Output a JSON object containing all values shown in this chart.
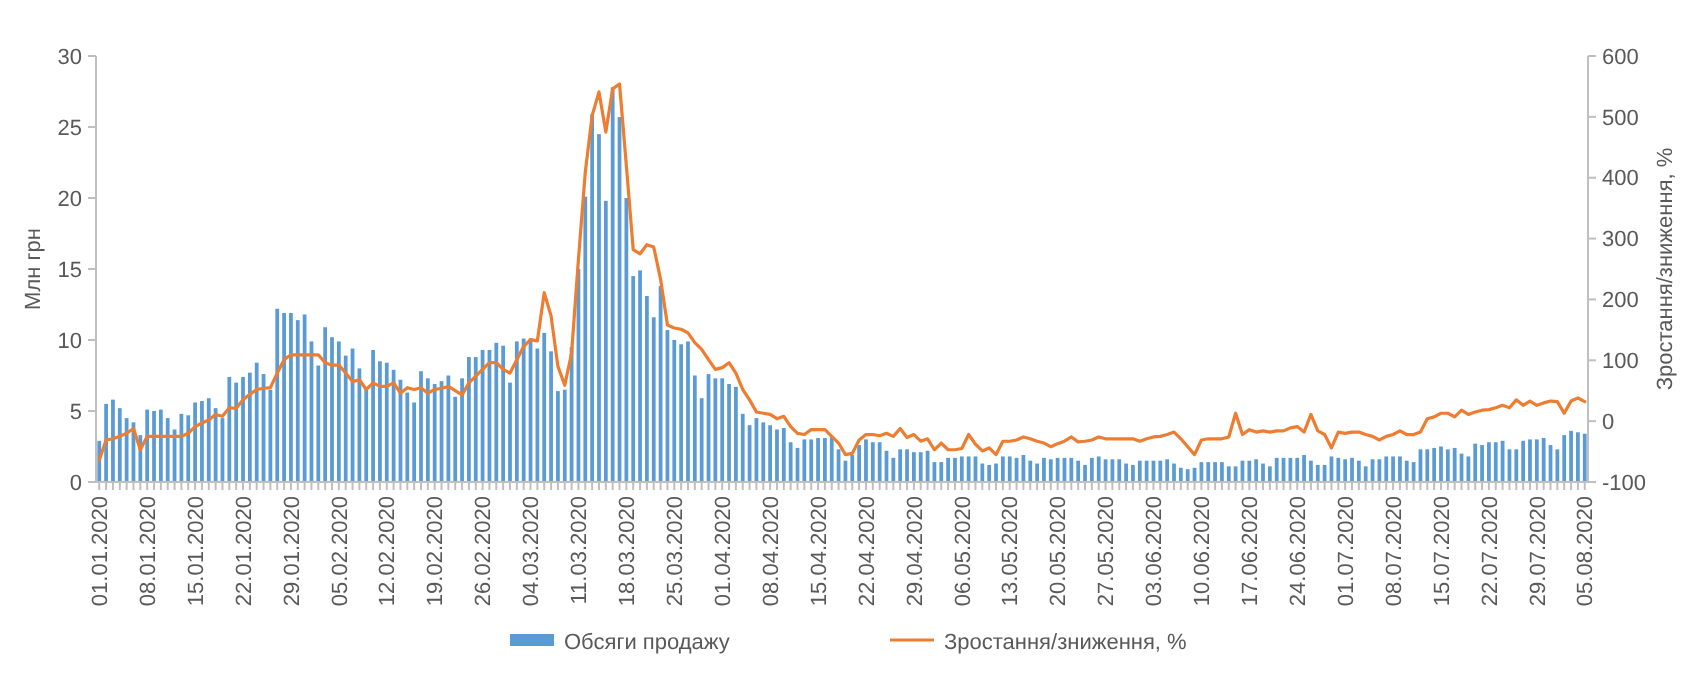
{
  "chart_data": {
    "type": "bar",
    "ylabel": "Млн грн",
    "y2label": "Зростання/зниження, %",
    "categories": [
      "01.01.2020",
      null,
      null,
      null,
      null,
      null,
      null,
      "08.01.2020",
      null,
      null,
      null,
      null,
      null,
      null,
      "15.01.2020",
      null,
      null,
      null,
      null,
      null,
      null,
      "22.01.2020",
      null,
      null,
      null,
      null,
      null,
      null,
      "29.01.2020",
      null,
      null,
      null,
      null,
      null,
      null,
      "05.02.2020",
      null,
      null,
      null,
      null,
      null,
      null,
      "12.02.2020",
      null,
      null,
      null,
      null,
      null,
      null,
      "19.02.2020",
      null,
      null,
      null,
      null,
      null,
      null,
      "26.02.2020",
      null,
      null,
      null,
      null,
      null,
      null,
      "04.03.2020",
      null,
      null,
      null,
      null,
      null,
      null,
      "11.03.2020",
      null,
      null,
      null,
      null,
      null,
      null,
      "18.03.2020",
      null,
      null,
      null,
      null,
      null,
      null,
      "25.03.2020",
      null,
      null,
      null,
      null,
      null,
      null,
      "01.04.2020",
      null,
      null,
      null,
      null,
      null,
      null,
      "08.04.2020",
      null,
      null,
      null,
      null,
      null,
      null,
      "15.04.2020",
      null,
      null,
      null,
      null,
      null,
      null,
      "22.04.2020",
      null,
      null,
      null,
      null,
      null,
      null,
      "29.04.2020",
      null,
      null,
      null,
      null,
      null,
      null,
      "06.05.2020",
      null,
      null,
      null,
      null,
      null,
      null,
      "13.05.2020",
      null,
      null,
      null,
      null,
      null,
      null,
      "20.05.2020",
      null,
      null,
      null,
      null,
      null,
      null,
      "27.05.2020",
      null,
      null,
      null,
      null,
      null,
      null,
      "03.06.2020",
      null,
      null,
      null,
      null,
      null,
      null,
      "10.06.2020",
      null,
      null,
      null,
      null,
      null,
      null,
      "17.06.2020",
      null,
      null,
      null,
      null,
      null,
      null,
      "24.06.2020",
      null,
      null,
      null,
      null,
      null,
      null,
      "01.07.2020",
      null,
      null,
      null,
      null,
      null,
      null,
      "08.07.2020",
      null,
      null,
      null,
      null,
      null,
      null,
      "15.07.2020",
      null,
      null,
      null,
      null,
      null,
      null,
      "22.07.2020",
      null,
      null,
      null,
      null,
      null,
      null,
      "29.07.2020",
      null,
      null,
      null,
      null,
      null,
      null,
      "05.08.2020"
    ],
    "series": [
      {
        "name": "Обсяги продажу",
        "color": "#5b9bd5",
        "values": [
          2.9,
          5.5,
          5.8,
          5.2,
          4.5,
          4.2,
          3.3,
          5.1,
          5.0,
          5.1,
          4.5,
          3.7,
          4.8,
          4.7,
          5.6,
          5.7,
          5.9,
          5.2,
          4.5,
          7.4,
          7.0,
          7.4,
          7.7,
          8.4,
          7.6,
          6.5,
          12.2,
          11.9,
          11.9,
          11.4,
          11.8,
          9.9,
          8.2,
          10.9,
          10.2,
          9.9,
          8.9,
          9.4,
          8.0,
          6.6,
          9.3,
          8.5,
          8.4,
          7.9,
          7.2,
          6.3,
          5.6,
          7.8,
          7.3,
          6.9,
          7.1,
          7.5,
          6.0,
          7.3,
          8.8,
          8.8,
          9.3,
          9.3,
          9.8,
          9.6,
          7.0,
          9.9,
          10.1,
          10.1,
          9.4,
          10.5,
          9.2,
          6.4,
          6.5,
          9.5,
          15.0,
          20.1,
          25.9,
          24.5,
          19.8,
          27.8,
          25.7,
          20.0,
          14.5,
          14.9,
          13.1,
          11.6,
          13.8,
          10.7,
          10.0,
          9.7,
          9.9,
          7.5,
          5.9,
          7.6,
          7.3,
          7.3,
          6.9,
          6.7,
          4.8,
          4.0,
          4.5,
          4.2,
          4.0,
          3.7,
          3.8,
          2.8,
          2.4,
          3.0,
          3.0,
          3.1,
          3.1,
          3.2,
          2.3,
          1.5,
          1.9,
          2.6,
          3.0,
          2.8,
          2.8,
          2.2,
          1.7,
          2.3,
          2.3,
          2.1,
          2.1,
          2.2,
          1.4,
          1.4,
          1.7,
          1.7,
          1.8,
          1.8,
          1.8,
          1.3,
          1.2,
          1.3,
          1.8,
          1.8,
          1.7,
          1.9,
          1.5,
          1.3,
          1.7,
          1.6,
          1.7,
          1.7,
          1.7,
          1.5,
          1.2,
          1.7,
          1.8,
          1.6,
          1.6,
          1.6,
          1.3,
          1.2,
          1.5,
          1.5,
          1.5,
          1.5,
          1.6,
          1.3,
          1.0,
          0.9,
          1.0,
          1.4,
          1.4,
          1.4,
          1.4,
          1.1,
          1.1,
          1.5,
          1.5,
          1.6,
          1.3,
          1.1,
          1.7,
          1.7,
          1.7,
          1.7,
          1.9,
          1.5,
          1.2,
          1.2,
          1.8,
          1.7,
          1.6,
          1.7,
          1.5,
          1.1,
          1.6,
          1.6,
          1.8,
          1.8,
          1.8,
          1.5,
          1.4,
          2.3,
          2.3,
          2.4,
          2.5,
          2.3,
          2.4,
          2.0,
          1.8,
          2.7,
          2.6,
          2.8,
          2.8,
          2.9,
          2.3,
          2.3,
          2.9,
          3.0,
          3.0,
          3.1,
          2.6,
          2.3,
          3.3,
          3.6,
          3.5,
          3.4
        ]
      },
      {
        "name": "Зростання/зниження, %",
        "type": "line",
        "axis": "y2",
        "color": "#ed7d31",
        "values": [
          -64,
          -31,
          -29,
          -25,
          -20,
          -12,
          -47,
          -25,
          -25,
          -25,
          -25,
          -25,
          -25,
          -20,
          -9,
          -3,
          2,
          11,
          8,
          22,
          21,
          35,
          44,
          52,
          54,
          55,
          79,
          101,
          109,
          109,
          109,
          109,
          109,
          96,
          92,
          92,
          79,
          65,
          68,
          52,
          63,
          57,
          57,
          63,
          46,
          55,
          52,
          55,
          46,
          52,
          54,
          57,
          50,
          43,
          63,
          74,
          85,
          96,
          96,
          85,
          79,
          101,
          123,
          134,
          132,
          211,
          173,
          90,
          59,
          112,
          266,
          409,
          502,
          541,
          475,
          546,
          554,
          420,
          282,
          275,
          290,
          286,
          233,
          158,
          153,
          151,
          145,
          129,
          118,
          101,
          85,
          88,
          96,
          79,
          52,
          35,
          15,
          13,
          11,
          4,
          8,
          -9,
          -20,
          -22,
          -14,
          -14,
          -14,
          -25,
          -36,
          -55,
          -53,
          -31,
          -22,
          -22,
          -24,
          -20,
          -25,
          -12,
          -27,
          -22,
          -33,
          -29,
          -47,
          -36,
          -47,
          -47,
          -45,
          -22,
          -38,
          -49,
          -44,
          -55,
          -33,
          -33,
          -31,
          -26,
          -29,
          -33,
          -36,
          -42,
          -37,
          -33,
          -26,
          -34,
          -33,
          -31,
          -26,
          -29,
          -29,
          -29,
          -29,
          -29,
          -33,
          -29,
          -26,
          -25,
          -22,
          -18,
          -29,
          -42,
          -55,
          -31,
          -29,
          -29,
          -29,
          -26,
          13,
          -22,
          -14,
          -18,
          -16,
          -18,
          -16,
          -16,
          -11,
          -9,
          -18,
          11,
          -16,
          -22,
          -44,
          -18,
          -20,
          -18,
          -18,
          -22,
          -25,
          -31,
          -25,
          -22,
          -16,
          -22,
          -22,
          -18,
          4,
          7,
          13,
          13,
          7,
          18,
          11,
          15,
          18,
          19,
          22,
          26,
          22,
          35,
          26,
          33,
          26,
          30,
          33,
          32,
          13,
          33,
          38,
          32
        ]
      }
    ],
    "ylim": [
      0,
      30
    ],
    "yticks": [
      0,
      5,
      10,
      15,
      20,
      25,
      30
    ],
    "y2lim": [
      -100,
      600
    ],
    "y2ticks": [
      -100,
      0,
      100,
      200,
      300,
      400,
      500,
      600
    ],
    "legend": "bottom",
    "grid": false
  }
}
